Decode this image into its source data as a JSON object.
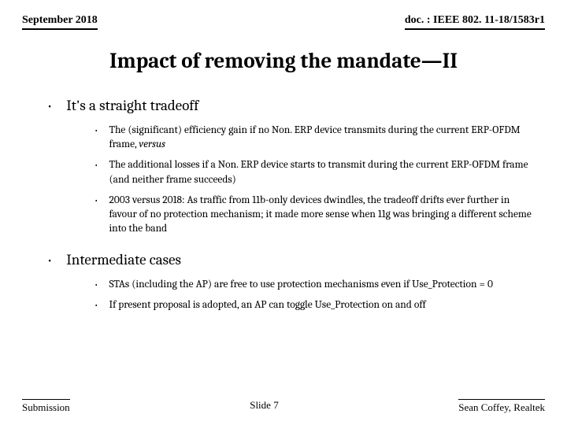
{
  "header": {
    "date": "September 2018",
    "doc": "doc. : IEEE 802. 11-18/1583r1"
  },
  "title": "Impact of removing the mandate—II",
  "section1": {
    "heading": "It's a straight tradeoff",
    "sub1a": "The (significant) efficiency gain if no Non. ERP device transmits during the current ERP-OFDM frame, ",
    "sub1b": "versus",
    "sub2": "The additional losses if a Non. ERP device starts to transmit during the current ERP-OFDM frame (and neither frame succeeds)",
    "sub3": "2003 versus 2018: As traffic from 11b-only devices dwindles, the tradeoff drifts ever further in favour of no protection mechanism; it made more sense when 11g was bringing a different scheme into the band"
  },
  "section2": {
    "heading": "Intermediate cases",
    "sub1": "STAs (including the AP) are free to use protection mechanisms even if Use_Protection = 0",
    "sub2": "If present proposal is adopted, an AP can toggle Use_Protection on and off"
  },
  "footer": {
    "left": "Submission",
    "center": "Slide 7",
    "right": "Sean Coffey, Realtek"
  }
}
